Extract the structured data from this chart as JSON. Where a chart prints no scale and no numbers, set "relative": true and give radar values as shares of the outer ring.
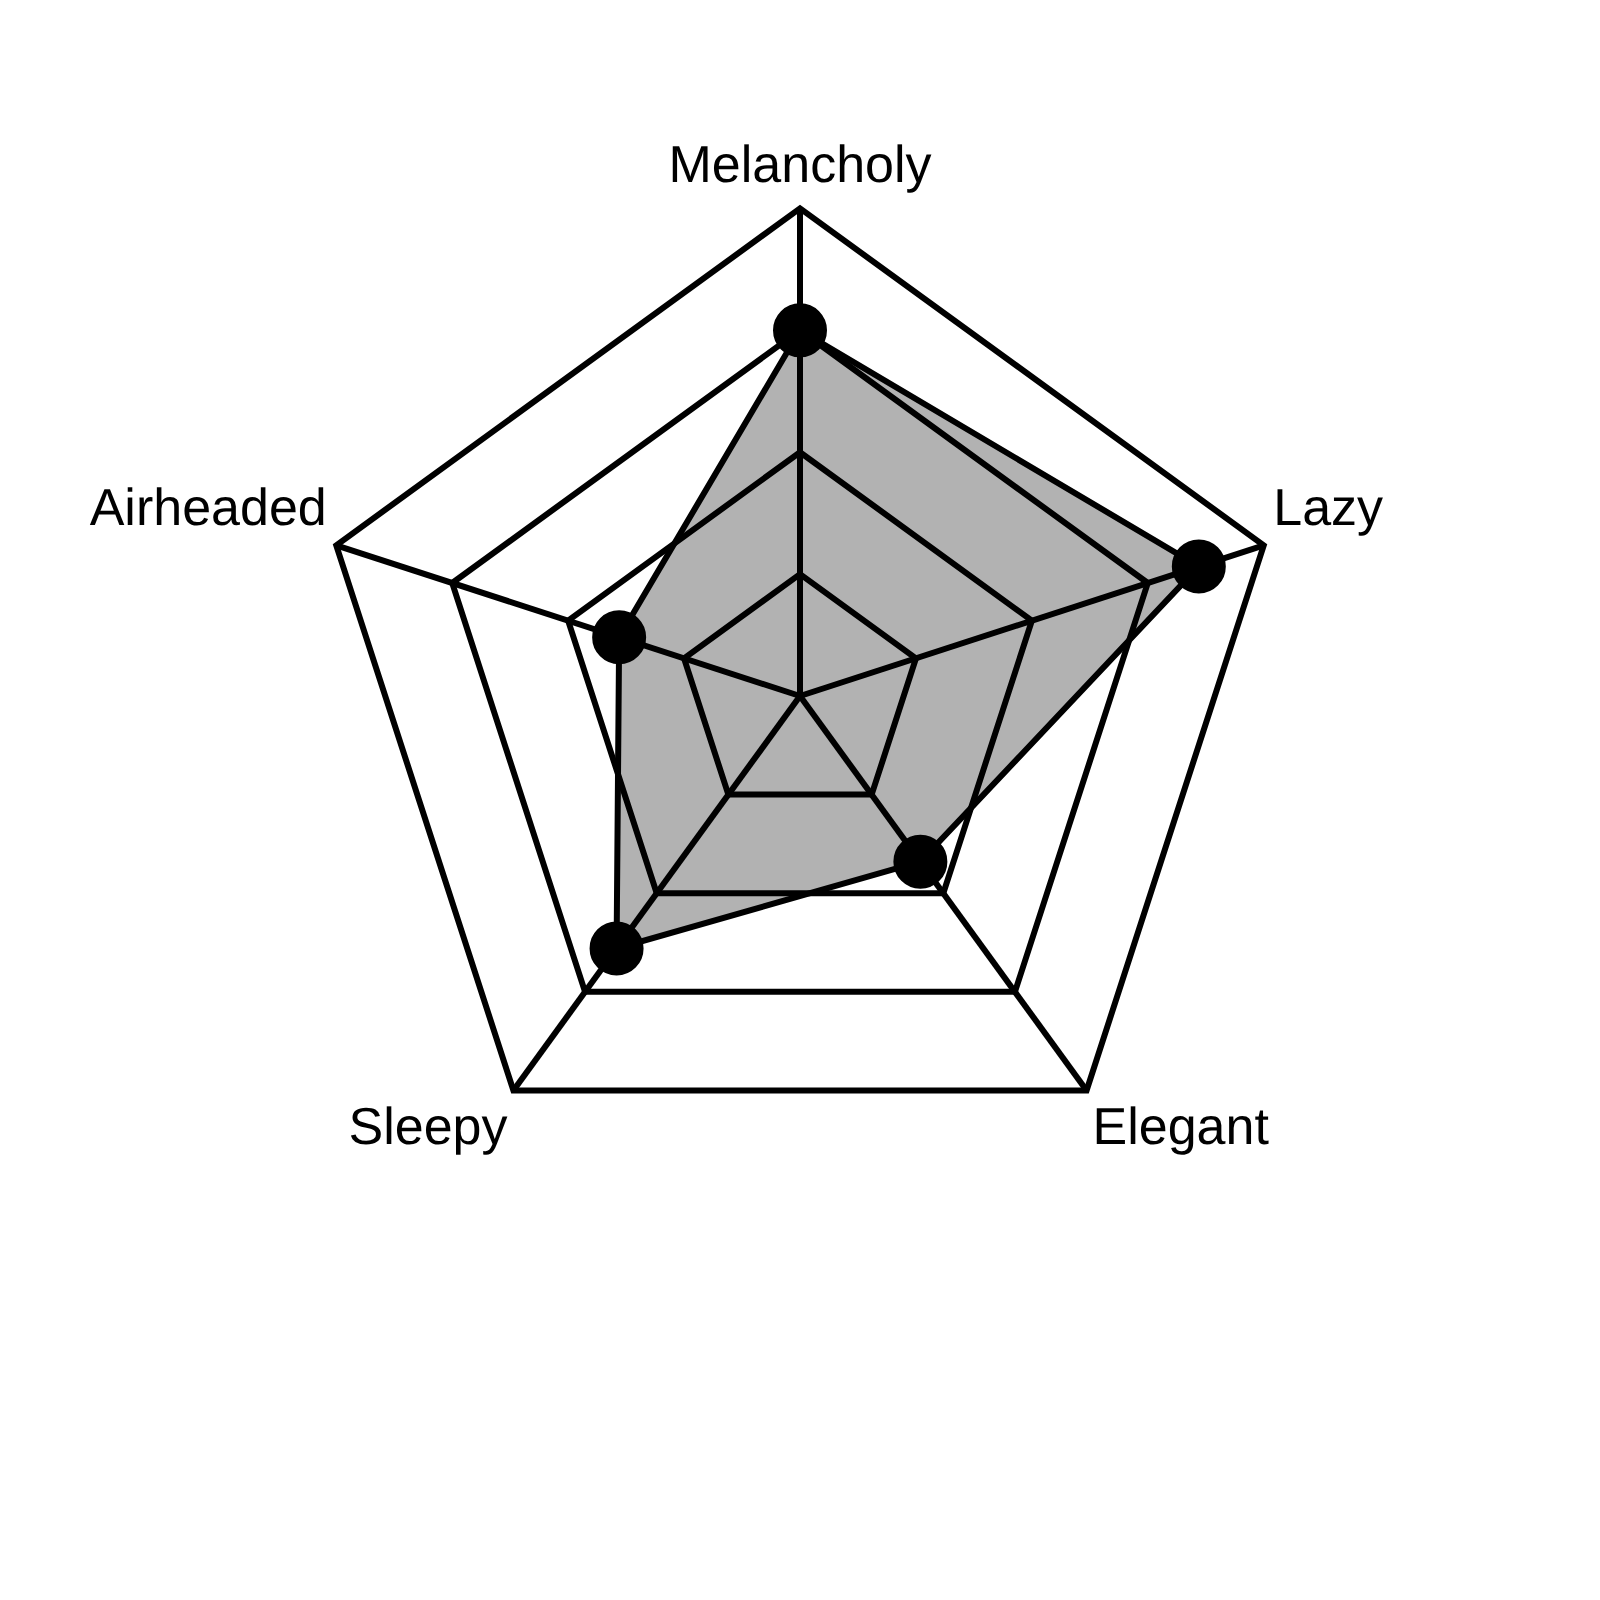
{
  "chart_data": {
    "type": "radar",
    "relative": true,
    "categories": [
      "Melancholy",
      "Lazy",
      "Elegant",
      "Sleepy",
      "Airheaded"
    ],
    "series": [
      {
        "color": "#000000",
        "values": [
          0.75,
          0.86,
          0.42,
          0.64,
          0.39
        ]
      }
    ],
    "marker": "circle",
    "legend": false,
    "grid": true
  }
}
